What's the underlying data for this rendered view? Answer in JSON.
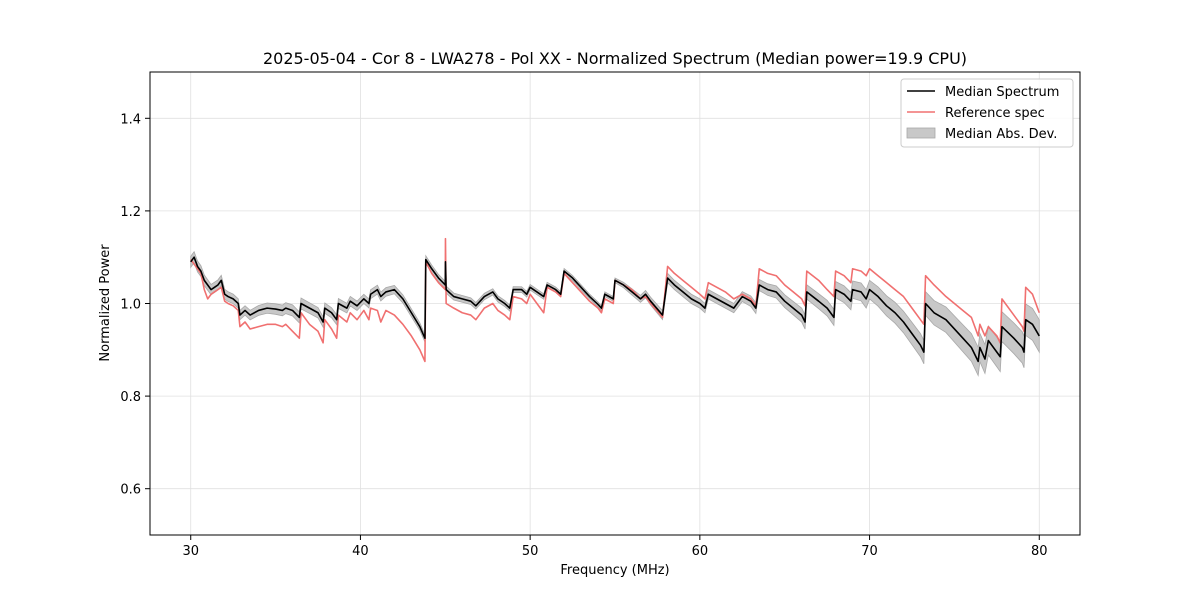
{
  "chart_data": {
    "type": "line",
    "title": "2025-05-04 - Cor 8 - LWA278 - Pol XX - Normalized Spectrum (Median power=19.9 CPU)",
    "xlabel": "Frequency (MHz)",
    "ylabel": "Normalized Power",
    "xlim": [
      27.6,
      82.4
    ],
    "ylim": [
      0.5,
      1.5
    ],
    "xticks": [
      30,
      40,
      50,
      60,
      70,
      80
    ],
    "yticks": [
      0.6,
      0.8,
      1.0,
      1.2,
      1.4
    ],
    "xtick_labels": [
      "30",
      "40",
      "50",
      "60",
      "70",
      "80"
    ],
    "ytick_labels": [
      "0.6",
      "0.8",
      "1.0",
      "1.2",
      "1.4"
    ],
    "grid": true,
    "legend_position": "top-right",
    "colors": {
      "median": "#000000",
      "reference": "#f07070",
      "band_fill": "#c8c8c8",
      "band_edge": "#a8a8a8"
    },
    "series": [
      {
        "name": "Median Spectrum",
        "points": [
          [
            30.0,
            1.09
          ],
          [
            30.2,
            1.1
          ],
          [
            30.4,
            1.08
          ],
          [
            30.6,
            1.07
          ],
          [
            30.8,
            1.05
          ],
          [
            31.0,
            1.04
          ],
          [
            31.2,
            1.03
          ],
          [
            31.4,
            1.035
          ],
          [
            31.6,
            1.04
          ],
          [
            31.8,
            1.05
          ],
          [
            32.0,
            1.02
          ],
          [
            32.2,
            1.015
          ],
          [
            32.5,
            1.01
          ],
          [
            32.8,
            1.0
          ],
          [
            32.9,
            0.975
          ],
          [
            33.2,
            0.985
          ],
          [
            33.5,
            0.975
          ],
          [
            34.0,
            0.985
          ],
          [
            34.5,
            0.99
          ],
          [
            35.0,
            0.988
          ],
          [
            35.4,
            0.985
          ],
          [
            35.6,
            0.99
          ],
          [
            36.0,
            0.985
          ],
          [
            36.4,
            0.97
          ],
          [
            36.5,
            1.0
          ],
          [
            37.0,
            0.99
          ],
          [
            37.5,
            0.98
          ],
          [
            37.8,
            0.96
          ],
          [
            37.9,
            0.99
          ],
          [
            38.3,
            0.98
          ],
          [
            38.6,
            0.965
          ],
          [
            38.7,
            1.0
          ],
          [
            39.2,
            0.99
          ],
          [
            39.4,
            1.005
          ],
          [
            39.8,
            0.995
          ],
          [
            40.2,
            1.01
          ],
          [
            40.5,
            1.0
          ],
          [
            40.6,
            1.02
          ],
          [
            41.0,
            1.03
          ],
          [
            41.2,
            1.015
          ],
          [
            41.5,
            1.025
          ],
          [
            42.0,
            1.03
          ],
          [
            42.5,
            1.01
          ],
          [
            43.0,
            0.98
          ],
          [
            43.5,
            0.95
          ],
          [
            43.8,
            0.925
          ],
          [
            43.85,
            1.095
          ],
          [
            44.2,
            1.075
          ],
          [
            44.6,
            1.055
          ],
          [
            45.0,
            1.04
          ],
          [
            45.01,
            1.09
          ],
          [
            45.05,
            1.03
          ],
          [
            45.5,
            1.015
          ],
          [
            46.0,
            1.01
          ],
          [
            46.5,
            1.005
          ],
          [
            46.8,
            0.995
          ],
          [
            47.3,
            1.015
          ],
          [
            47.8,
            1.025
          ],
          [
            48.1,
            1.01
          ],
          [
            48.5,
            1.0
          ],
          [
            48.8,
            0.99
          ],
          [
            49.0,
            1.03
          ],
          [
            49.5,
            1.03
          ],
          [
            49.8,
            1.02
          ],
          [
            50.0,
            1.035
          ],
          [
            50.4,
            1.025
          ],
          [
            50.8,
            1.015
          ],
          [
            51.0,
            1.04
          ],
          [
            51.5,
            1.03
          ],
          [
            51.8,
            1.02
          ],
          [
            52.0,
            1.07
          ],
          [
            52.5,
            1.055
          ],
          [
            53.0,
            1.035
          ],
          [
            53.5,
            1.015
          ],
          [
            54.0,
            0.998
          ],
          [
            54.2,
            0.99
          ],
          [
            54.4,
            1.02
          ],
          [
            54.9,
            1.01
          ],
          [
            55.0,
            1.05
          ],
          [
            55.5,
            1.04
          ],
          [
            56.0,
            1.025
          ],
          [
            56.5,
            1.01
          ],
          [
            56.8,
            1.02
          ],
          [
            57.1,
            1.005
          ],
          [
            57.8,
            0.975
          ],
          [
            58.1,
            1.055
          ],
          [
            58.5,
            1.04
          ],
          [
            59.0,
            1.025
          ],
          [
            59.5,
            1.01
          ],
          [
            60.0,
            1.0
          ],
          [
            60.3,
            0.99
          ],
          [
            60.5,
            1.02
          ],
          [
            61.0,
            1.01
          ],
          [
            61.5,
            1.0
          ],
          [
            62.0,
            0.99
          ],
          [
            62.5,
            1.015
          ],
          [
            63.0,
            1.005
          ],
          [
            63.3,
            0.99
          ],
          [
            63.5,
            1.04
          ],
          [
            64.0,
            1.03
          ],
          [
            64.5,
            1.025
          ],
          [
            65.0,
            1.005
          ],
          [
            65.5,
            0.99
          ],
          [
            66.0,
            0.975
          ],
          [
            66.2,
            0.96
          ],
          [
            66.3,
            1.025
          ],
          [
            67.0,
            1.005
          ],
          [
            67.5,
            0.99
          ],
          [
            67.9,
            0.97
          ],
          [
            68.0,
            1.03
          ],
          [
            68.5,
            1.02
          ],
          [
            68.9,
            1.005
          ],
          [
            69.0,
            1.03
          ],
          [
            69.5,
            1.025
          ],
          [
            69.8,
            1.01
          ],
          [
            70.0,
            1.03
          ],
          [
            70.5,
            1.015
          ],
          [
            71.0,
            0.995
          ],
          [
            71.5,
            0.98
          ],
          [
            72.0,
            0.96
          ],
          [
            72.5,
            0.935
          ],
          [
            73.0,
            0.91
          ],
          [
            73.2,
            0.895
          ],
          [
            73.3,
            1.0
          ],
          [
            73.8,
            0.98
          ],
          [
            74.5,
            0.965
          ],
          [
            75.0,
            0.945
          ],
          [
            75.5,
            0.925
          ],
          [
            76.0,
            0.905
          ],
          [
            76.4,
            0.875
          ],
          [
            76.5,
            0.905
          ],
          [
            76.8,
            0.88
          ],
          [
            77.0,
            0.92
          ],
          [
            77.5,
            0.895
          ],
          [
            77.7,
            0.885
          ],
          [
            77.8,
            0.95
          ],
          [
            78.5,
            0.925
          ],
          [
            79.0,
            0.905
          ],
          [
            79.1,
            0.895
          ],
          [
            79.2,
            0.965
          ],
          [
            79.6,
            0.955
          ],
          [
            80.0,
            0.93
          ]
        ]
      },
      {
        "name": "Reference spec",
        "points": [
          [
            30.0,
            1.095
          ],
          [
            30.2,
            1.085
          ],
          [
            30.4,
            1.075
          ],
          [
            30.6,
            1.065
          ],
          [
            30.8,
            1.03
          ],
          [
            31.0,
            1.01
          ],
          [
            31.2,
            1.02
          ],
          [
            31.4,
            1.025
          ],
          [
            31.6,
            1.03
          ],
          [
            31.8,
            1.035
          ],
          [
            32.0,
            1.005
          ],
          [
            32.2,
            1.0
          ],
          [
            32.5,
            0.995
          ],
          [
            32.8,
            0.985
          ],
          [
            32.9,
            0.95
          ],
          [
            33.2,
            0.96
          ],
          [
            33.5,
            0.945
          ],
          [
            34.0,
            0.95
          ],
          [
            34.5,
            0.955
          ],
          [
            35.0,
            0.955
          ],
          [
            35.4,
            0.95
          ],
          [
            35.6,
            0.955
          ],
          [
            36.0,
            0.94
          ],
          [
            36.4,
            0.925
          ],
          [
            36.5,
            0.98
          ],
          [
            37.0,
            0.955
          ],
          [
            37.5,
            0.94
          ],
          [
            37.8,
            0.915
          ],
          [
            37.9,
            0.965
          ],
          [
            38.3,
            0.945
          ],
          [
            38.6,
            0.925
          ],
          [
            38.7,
            0.975
          ],
          [
            39.2,
            0.96
          ],
          [
            39.4,
            0.98
          ],
          [
            39.8,
            0.965
          ],
          [
            40.2,
            0.985
          ],
          [
            40.5,
            0.965
          ],
          [
            40.6,
            0.99
          ],
          [
            41.0,
            0.985
          ],
          [
            41.2,
            0.96
          ],
          [
            41.5,
            0.985
          ],
          [
            42.0,
            0.975
          ],
          [
            42.5,
            0.955
          ],
          [
            43.0,
            0.93
          ],
          [
            43.5,
            0.9
          ],
          [
            43.8,
            0.875
          ],
          [
            43.85,
            1.09
          ],
          [
            44.2,
            1.065
          ],
          [
            44.6,
            1.045
          ],
          [
            45.0,
            1.03
          ],
          [
            45.01,
            1.14
          ],
          [
            45.05,
            1.0
          ],
          [
            45.5,
            0.99
          ],
          [
            46.0,
            0.98
          ],
          [
            46.5,
            0.975
          ],
          [
            46.8,
            0.965
          ],
          [
            47.3,
            0.99
          ],
          [
            47.8,
            1.0
          ],
          [
            48.1,
            0.985
          ],
          [
            48.5,
            0.975
          ],
          [
            48.8,
            0.965
          ],
          [
            49.0,
            1.015
          ],
          [
            49.5,
            1.01
          ],
          [
            49.8,
            1.0
          ],
          [
            50.0,
            1.02
          ],
          [
            50.4,
            1.0
          ],
          [
            50.8,
            0.98
          ],
          [
            51.0,
            1.035
          ],
          [
            51.5,
            1.025
          ],
          [
            51.8,
            1.015
          ],
          [
            52.0,
            1.065
          ],
          [
            52.5,
            1.045
          ],
          [
            53.0,
            1.025
          ],
          [
            53.5,
            1.005
          ],
          [
            54.0,
            0.99
          ],
          [
            54.2,
            0.98
          ],
          [
            54.4,
            1.01
          ],
          [
            54.9,
            1.0
          ],
          [
            55.0,
            1.05
          ],
          [
            55.5,
            1.04
          ],
          [
            56.0,
            1.03
          ],
          [
            56.5,
            1.01
          ],
          [
            56.8,
            1.015
          ],
          [
            57.1,
            1.0
          ],
          [
            57.8,
            0.97
          ],
          [
            58.1,
            1.08
          ],
          [
            58.5,
            1.065
          ],
          [
            59.0,
            1.05
          ],
          [
            59.5,
            1.035
          ],
          [
            60.0,
            1.02
          ],
          [
            60.3,
            1.01
          ],
          [
            60.5,
            1.045
          ],
          [
            61.0,
            1.035
          ],
          [
            61.5,
            1.025
          ],
          [
            62.0,
            1.01
          ],
          [
            62.5,
            1.02
          ],
          [
            63.0,
            1.01
          ],
          [
            63.3,
            0.995
          ],
          [
            63.5,
            1.075
          ],
          [
            64.0,
            1.065
          ],
          [
            64.5,
            1.06
          ],
          [
            65.0,
            1.04
          ],
          [
            65.5,
            1.025
          ],
          [
            66.0,
            1.01
          ],
          [
            66.2,
            0.995
          ],
          [
            66.3,
            1.07
          ],
          [
            67.0,
            1.05
          ],
          [
            67.5,
            1.03
          ],
          [
            67.9,
            1.015
          ],
          [
            68.0,
            1.07
          ],
          [
            68.5,
            1.06
          ],
          [
            68.9,
            1.045
          ],
          [
            69.0,
            1.075
          ],
          [
            69.5,
            1.07
          ],
          [
            69.8,
            1.06
          ],
          [
            70.0,
            1.075
          ],
          [
            70.5,
            1.06
          ],
          [
            71.0,
            1.045
          ],
          [
            71.5,
            1.03
          ],
          [
            72.0,
            1.015
          ],
          [
            72.5,
            0.99
          ],
          [
            73.0,
            0.965
          ],
          [
            73.2,
            0.955
          ],
          [
            73.3,
            1.06
          ],
          [
            73.8,
            1.04
          ],
          [
            74.5,
            1.015
          ],
          [
            75.0,
            1.0
          ],
          [
            75.5,
            0.985
          ],
          [
            76.0,
            0.97
          ],
          [
            76.4,
            0.93
          ],
          [
            76.5,
            0.955
          ],
          [
            76.8,
            0.93
          ],
          [
            77.0,
            0.95
          ],
          [
            77.5,
            0.93
          ],
          [
            77.7,
            0.915
          ],
          [
            77.8,
            1.01
          ],
          [
            78.5,
            0.975
          ],
          [
            79.0,
            0.95
          ],
          [
            79.1,
            0.94
          ],
          [
            79.2,
            1.035
          ],
          [
            79.6,
            1.02
          ],
          [
            80.0,
            0.98
          ]
        ]
      }
    ],
    "mad_halfwidth": [
      [
        30.0,
        0.012
      ],
      [
        33.0,
        0.01
      ],
      [
        36.0,
        0.012
      ],
      [
        40.0,
        0.01
      ],
      [
        44.0,
        0.008
      ],
      [
        50.0,
        0.006
      ],
      [
        55.0,
        0.005
      ],
      [
        58.0,
        0.01
      ],
      [
        62.0,
        0.01
      ],
      [
        66.0,
        0.015
      ],
      [
        70.0,
        0.02
      ],
      [
        73.0,
        0.025
      ],
      [
        76.0,
        0.03
      ],
      [
        80.0,
        0.035
      ]
    ],
    "legend": [
      {
        "key": "median",
        "label": "Median Spectrum"
      },
      {
        "key": "reference",
        "label": "Reference spec"
      },
      {
        "key": "band",
        "label": "Median Abs. Dev."
      }
    ]
  }
}
